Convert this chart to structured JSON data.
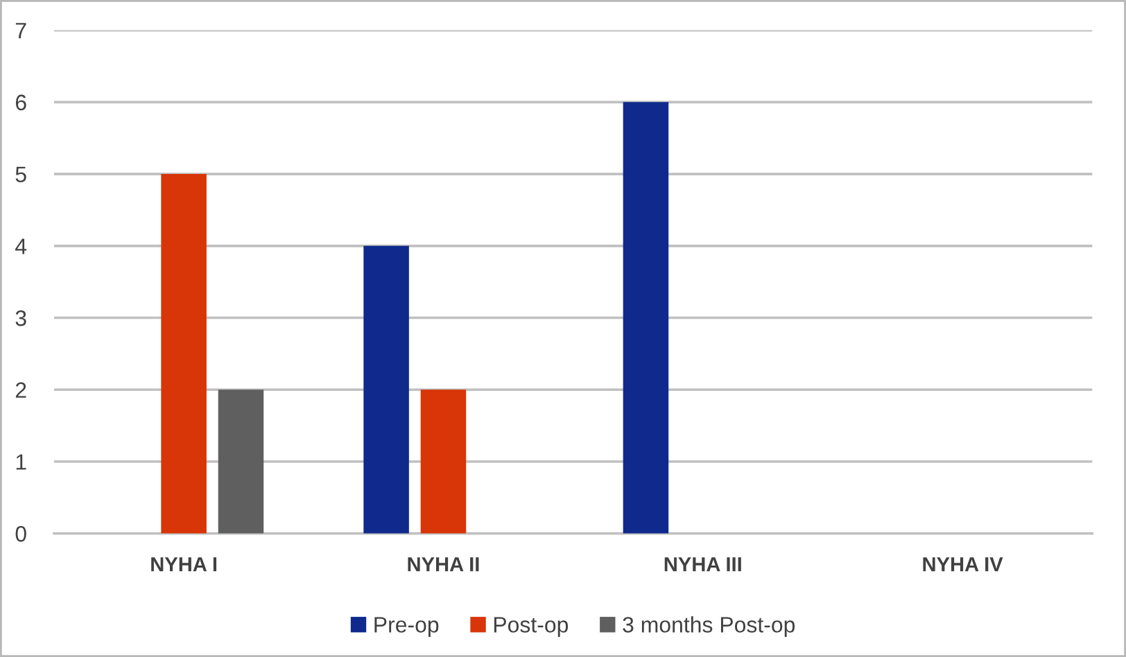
{
  "chart_data": {
    "type": "bar",
    "categories": [
      "NYHA I",
      "NYHA II",
      "NYHA III",
      "NYHA IV"
    ],
    "series": [
      {
        "name": "Pre-op",
        "color": "#0f2a8c",
        "values": [
          0,
          4,
          6,
          0
        ]
      },
      {
        "name": "Post-op",
        "color": "#d83508",
        "values": [
          5,
          2,
          0,
          0
        ]
      },
      {
        "name": "3 months Post-op",
        "color": "#5f5f5f",
        "values": [
          2,
          0,
          0,
          0
        ]
      }
    ],
    "ylim": [
      0,
      7
    ],
    "yticks": [
      0,
      1,
      2,
      3,
      4,
      5,
      6,
      7
    ],
    "grid": "y",
    "legend": "bottom"
  }
}
